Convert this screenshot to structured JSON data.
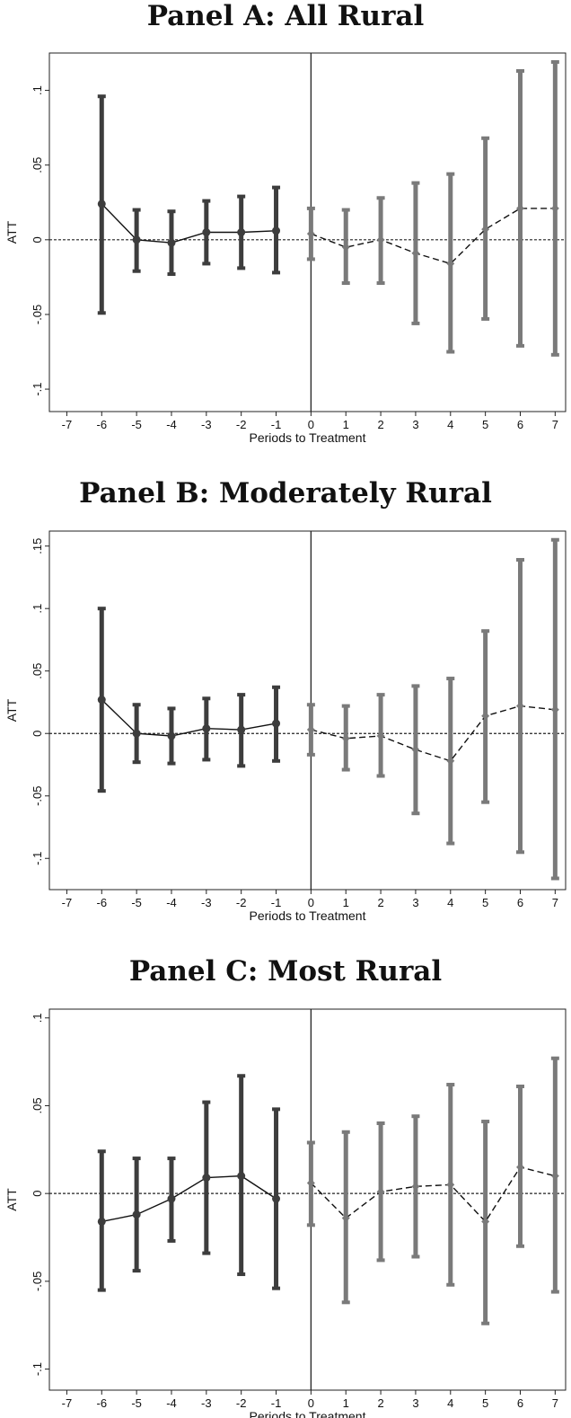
{
  "chart_data": [
    {
      "type": "line",
      "title": "Panel A: All Rural",
      "xlabel": "Periods to Treatment",
      "ylabel": "ATT",
      "xlim": [
        -7.5,
        7.3
      ],
      "ylim": [
        -0.115,
        0.125
      ],
      "xticks": [
        -7,
        -6,
        -5,
        -4,
        -3,
        -2,
        -1,
        0,
        1,
        2,
        3,
        4,
        5,
        6,
        7
      ],
      "yticks": [
        {
          "v": -0.1,
          "label": "-.1"
        },
        {
          "v": -0.05,
          "label": "-.05"
        },
        {
          "v": 0,
          "label": "0"
        },
        {
          "v": 0.05,
          "label": ".05"
        },
        {
          "v": 0.1,
          "label": ".1"
        }
      ],
      "series": [
        {
          "style": "pre",
          "x": [
            -6,
            -5,
            -4,
            -3,
            -2,
            -1
          ],
          "y": [
            0.024,
            0.0,
            -0.002,
            0.005,
            0.005,
            0.006
          ],
          "lo": [
            -0.049,
            -0.021,
            -0.023,
            -0.016,
            -0.019,
            -0.022
          ],
          "hi": [
            0.096,
            0.02,
            0.019,
            0.026,
            0.029,
            0.035
          ]
        },
        {
          "style": "post",
          "x": [
            0,
            1,
            2,
            3,
            4,
            5,
            6,
            7
          ],
          "y": [
            0.004,
            -0.005,
            0.0,
            -0.009,
            -0.016,
            0.007,
            0.021,
            0.021
          ],
          "lo": [
            -0.013,
            -0.029,
            -0.029,
            -0.056,
            -0.075,
            -0.053,
            -0.071,
            -0.077
          ],
          "hi": [
            0.021,
            0.02,
            0.028,
            0.038,
            0.044,
            0.068,
            0.113,
            0.119
          ]
        }
      ]
    },
    {
      "type": "line",
      "title": "Panel B: Moderately Rural",
      "xlabel": "Periods to Treatment",
      "ylabel": "ATT",
      "xlim": [
        -7.5,
        7.3
      ],
      "ylim": [
        -0.125,
        0.162
      ],
      "xticks": [
        -7,
        -6,
        -5,
        -4,
        -3,
        -2,
        -1,
        0,
        1,
        2,
        3,
        4,
        5,
        6,
        7
      ],
      "yticks": [
        {
          "v": -0.1,
          "label": "-.1"
        },
        {
          "v": -0.05,
          "label": "-.05"
        },
        {
          "v": 0,
          "label": "0"
        },
        {
          "v": 0.05,
          "label": ".05"
        },
        {
          "v": 0.1,
          "label": ".1"
        },
        {
          "v": 0.15,
          "label": ".15"
        }
      ],
      "series": [
        {
          "style": "pre",
          "x": [
            -6,
            -5,
            -4,
            -3,
            -2,
            -1
          ],
          "y": [
            0.027,
            0.0,
            -0.002,
            0.004,
            0.003,
            0.008
          ],
          "lo": [
            -0.046,
            -0.023,
            -0.024,
            -0.021,
            -0.026,
            -0.022
          ],
          "hi": [
            0.1,
            0.023,
            0.02,
            0.028,
            0.031,
            0.037
          ]
        },
        {
          "style": "post",
          "x": [
            0,
            1,
            2,
            3,
            4,
            5,
            6,
            7
          ],
          "y": [
            0.003,
            -0.004,
            -0.002,
            -0.013,
            -0.022,
            0.014,
            0.022,
            0.019
          ],
          "lo": [
            -0.017,
            -0.029,
            -0.034,
            -0.064,
            -0.088,
            -0.055,
            -0.095,
            -0.116
          ],
          "hi": [
            0.023,
            0.022,
            0.031,
            0.038,
            0.044,
            0.082,
            0.139,
            0.155
          ]
        }
      ]
    },
    {
      "type": "line",
      "title": "Panel C: Most Rural",
      "xlabel": "Periods to Treatment",
      "ylabel": "ATT",
      "xlim": [
        -7.5,
        7.3
      ],
      "ylim": [
        -0.112,
        0.105
      ],
      "xticks": [
        -7,
        -6,
        -5,
        -4,
        -3,
        -2,
        -1,
        0,
        1,
        2,
        3,
        4,
        5,
        6,
        7
      ],
      "yticks": [
        {
          "v": -0.1,
          "label": "-.1"
        },
        {
          "v": -0.05,
          "label": "-.05"
        },
        {
          "v": 0,
          "label": "0"
        },
        {
          "v": 0.05,
          "label": ".05"
        },
        {
          "v": 0.1,
          "label": ".1"
        }
      ],
      "series": [
        {
          "style": "pre",
          "x": [
            -6,
            -5,
            -4,
            -3,
            -2,
            -1
          ],
          "y": [
            -0.016,
            -0.012,
            -0.003,
            0.009,
            0.01,
            -0.003
          ],
          "lo": [
            -0.055,
            -0.044,
            -0.027,
            -0.034,
            -0.046,
            -0.054
          ],
          "hi": [
            0.024,
            0.02,
            0.02,
            0.052,
            0.067,
            0.048
          ]
        },
        {
          "style": "post",
          "x": [
            0,
            1,
            2,
            3,
            4,
            5,
            6,
            7
          ],
          "y": [
            0.006,
            -0.014,
            0.001,
            0.004,
            0.005,
            -0.016,
            0.015,
            0.01
          ],
          "lo": [
            -0.018,
            -0.062,
            -0.038,
            -0.036,
            -0.052,
            -0.074,
            -0.03,
            -0.056
          ],
          "hi": [
            0.029,
            0.035,
            0.04,
            0.044,
            0.062,
            0.041,
            0.061,
            0.077
          ]
        }
      ]
    }
  ],
  "colors": {
    "pre": "#3d3d3d",
    "post": "#7a7a7a",
    "axis": "#222222",
    "zero_line": "#222222"
  }
}
